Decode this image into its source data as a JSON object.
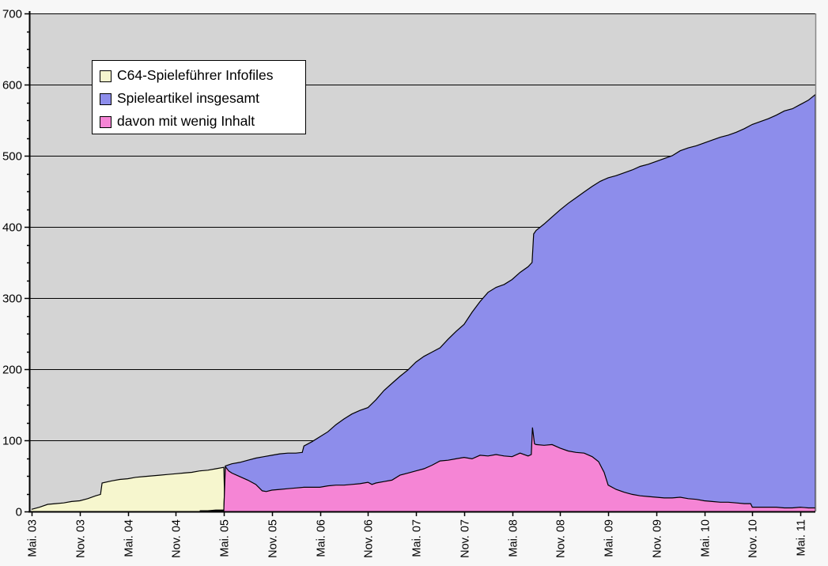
{
  "legend": {
    "items": [
      {
        "label": "C64-Spieleführer Infofiles",
        "color": "#f6f6ce"
      },
      {
        "label": "Spieleartikel insgesamt",
        "color": "#8d8deb"
      },
      {
        "label": "davon mit wenig Inhalt",
        "color": "#f585d5"
      }
    ]
  },
  "colors": {
    "plot_background": "#d4d4d4",
    "page_background": "#f7f7f7",
    "gridline": "#000000",
    "axis": "#000000",
    "right_border": "#888888",
    "series_outline": "#000000"
  },
  "chart_data": {
    "type": "area",
    "title": "",
    "xlabel": "",
    "ylabel": "",
    "ylim": [
      0,
      700
    ],
    "y_major_step": 100,
    "y_minor_step": 25,
    "grid": "horizontal-black",
    "legend_position": "top-left",
    "y_ticks": [
      "0",
      "100",
      "200",
      "300",
      "400",
      "500",
      "600",
      "700"
    ],
    "x_ticks": [
      "Mai. 03",
      "Nov. 03",
      "Mai. 04",
      "Nov. 04",
      "Mai. 05",
      "Nov. 05",
      "Mai. 06",
      "Nov. 06",
      "Mai. 07",
      "Nov. 07",
      "Mai. 08",
      "Nov. 08",
      "Mai. 09",
      "Nov. 09",
      "Mai. 10",
      "Nov. 10",
      "Mai. 11"
    ],
    "x_unit": "months since Mai 2003, tick every 6 months",
    "series": [
      {
        "name": "C64-Spieleführer Infofiles",
        "color": "#f6f6ce",
        "points": [
          [
            0,
            3
          ],
          [
            1,
            6
          ],
          [
            2,
            10
          ],
          [
            3,
            11
          ],
          [
            4,
            12
          ],
          [
            5,
            14
          ],
          [
            6,
            15
          ],
          [
            7,
            18
          ],
          [
            8,
            22
          ],
          [
            8.6,
            24
          ],
          [
            8.8,
            40
          ],
          [
            10,
            43
          ],
          [
            11,
            45
          ],
          [
            12,
            46
          ],
          [
            13,
            48
          ],
          [
            14,
            49
          ],
          [
            15,
            50
          ],
          [
            16,
            51
          ],
          [
            17,
            52
          ],
          [
            18,
            53
          ],
          [
            19,
            54
          ],
          [
            20,
            55
          ],
          [
            21,
            57
          ],
          [
            22,
            58
          ],
          [
            23,
            60
          ],
          [
            24,
            62
          ],
          [
            24.15,
            0
          ]
        ]
      },
      {
        "name": "Spieleartikel insgesamt",
        "color": "#8d8deb",
        "points": [
          [
            21,
            1
          ],
          [
            22,
            1
          ],
          [
            23,
            2
          ],
          [
            24,
            2
          ],
          [
            24.2,
            64
          ],
          [
            25,
            67
          ],
          [
            26,
            69
          ],
          [
            27,
            72
          ],
          [
            28,
            75
          ],
          [
            29,
            77
          ],
          [
            30,
            79
          ],
          [
            31,
            81
          ],
          [
            32,
            82
          ],
          [
            33,
            82
          ],
          [
            33.8,
            83
          ],
          [
            34,
            92
          ],
          [
            35,
            98
          ],
          [
            36,
            105
          ],
          [
            37,
            112
          ],
          [
            38,
            122
          ],
          [
            39,
            130
          ],
          [
            40,
            137
          ],
          [
            41,
            142
          ],
          [
            42,
            146
          ],
          [
            43,
            157
          ],
          [
            44,
            170
          ],
          [
            45,
            180
          ],
          [
            46,
            190
          ],
          [
            47,
            199
          ],
          [
            48,
            210
          ],
          [
            49,
            218
          ],
          [
            50,
            224
          ],
          [
            51,
            230
          ],
          [
            52,
            242
          ],
          [
            53,
            253
          ],
          [
            54,
            263
          ],
          [
            55,
            280
          ],
          [
            56,
            295
          ],
          [
            57,
            308
          ],
          [
            58,
            315
          ],
          [
            59,
            319
          ],
          [
            60,
            326
          ],
          [
            61,
            336
          ],
          [
            62,
            344
          ],
          [
            62.5,
            350
          ],
          [
            62.7,
            390
          ],
          [
            63,
            395
          ],
          [
            64,
            404
          ],
          [
            65,
            414
          ],
          [
            66,
            424
          ],
          [
            67,
            433
          ],
          [
            68,
            441
          ],
          [
            69,
            449
          ],
          [
            70,
            457
          ],
          [
            71,
            464
          ],
          [
            72,
            469
          ],
          [
            73,
            472
          ],
          [
            74,
            476
          ],
          [
            75,
            480
          ],
          [
            76,
            485
          ],
          [
            77,
            488
          ],
          [
            78,
            492
          ],
          [
            79,
            496
          ],
          [
            80,
            500
          ],
          [
            81,
            507
          ],
          [
            82,
            511
          ],
          [
            83,
            514
          ],
          [
            84,
            518
          ],
          [
            85,
            522
          ],
          [
            86,
            526
          ],
          [
            87,
            529
          ],
          [
            88,
            533
          ],
          [
            89,
            538
          ],
          [
            90,
            544
          ],
          [
            91,
            548
          ],
          [
            92,
            552
          ],
          [
            93,
            557
          ],
          [
            94,
            563
          ],
          [
            95,
            566
          ],
          [
            96,
            572
          ],
          [
            97,
            578
          ],
          [
            98,
            586
          ]
        ]
      },
      {
        "name": "davon mit wenig Inhalt",
        "color": "#f585d5",
        "points": [
          [
            21,
            0
          ],
          [
            22,
            1
          ],
          [
            23,
            1
          ],
          [
            24,
            1
          ],
          [
            24.2,
            63
          ],
          [
            24.6,
            57
          ],
          [
            25,
            54
          ],
          [
            26,
            49
          ],
          [
            27,
            44
          ],
          [
            28,
            38
          ],
          [
            28.8,
            29
          ],
          [
            29.3,
            28
          ],
          [
            30,
            30
          ],
          [
            31,
            31
          ],
          [
            32,
            32
          ],
          [
            33,
            33
          ],
          [
            34,
            34
          ],
          [
            35,
            34
          ],
          [
            36,
            34
          ],
          [
            37,
            36
          ],
          [
            38,
            37
          ],
          [
            39,
            37
          ],
          [
            40,
            38
          ],
          [
            41,
            39
          ],
          [
            42,
            41
          ],
          [
            42.5,
            38
          ],
          [
            43,
            40
          ],
          [
            44,
            42
          ],
          [
            45,
            44
          ],
          [
            46,
            51
          ],
          [
            47,
            54
          ],
          [
            48,
            57
          ],
          [
            49,
            60
          ],
          [
            50,
            65
          ],
          [
            51,
            71
          ],
          [
            52,
            72
          ],
          [
            53,
            74
          ],
          [
            54,
            76
          ],
          [
            55,
            74
          ],
          [
            56,
            79
          ],
          [
            57,
            78
          ],
          [
            58,
            80
          ],
          [
            59,
            78
          ],
          [
            60,
            77
          ],
          [
            61,
            82
          ],
          [
            62,
            78
          ],
          [
            62.4,
            80
          ],
          [
            62.55,
            118
          ],
          [
            62.8,
            95
          ],
          [
            63,
            94
          ],
          [
            64,
            93
          ],
          [
            65,
            94
          ],
          [
            66,
            89
          ],
          [
            67,
            85
          ],
          [
            68,
            83
          ],
          [
            69,
            82
          ],
          [
            70,
            77
          ],
          [
            70.8,
            70
          ],
          [
            71.5,
            55
          ],
          [
            72,
            37
          ],
          [
            73,
            31
          ],
          [
            74,
            27
          ],
          [
            75,
            24
          ],
          [
            76,
            22
          ],
          [
            77,
            21
          ],
          [
            78,
            20
          ],
          [
            79,
            19
          ],
          [
            80,
            19
          ],
          [
            81,
            20
          ],
          [
            82,
            18
          ],
          [
            83,
            17
          ],
          [
            84,
            15
          ],
          [
            85,
            14
          ],
          [
            86,
            13
          ],
          [
            87,
            13
          ],
          [
            88,
            12
          ],
          [
            89,
            11
          ],
          [
            89.8,
            11
          ],
          [
            90,
            6
          ],
          [
            91,
            6
          ],
          [
            92,
            6
          ],
          [
            93,
            6
          ],
          [
            94,
            5
          ],
          [
            95,
            5
          ],
          [
            96,
            6
          ],
          [
            97,
            5
          ],
          [
            98,
            5
          ]
        ]
      }
    ]
  }
}
